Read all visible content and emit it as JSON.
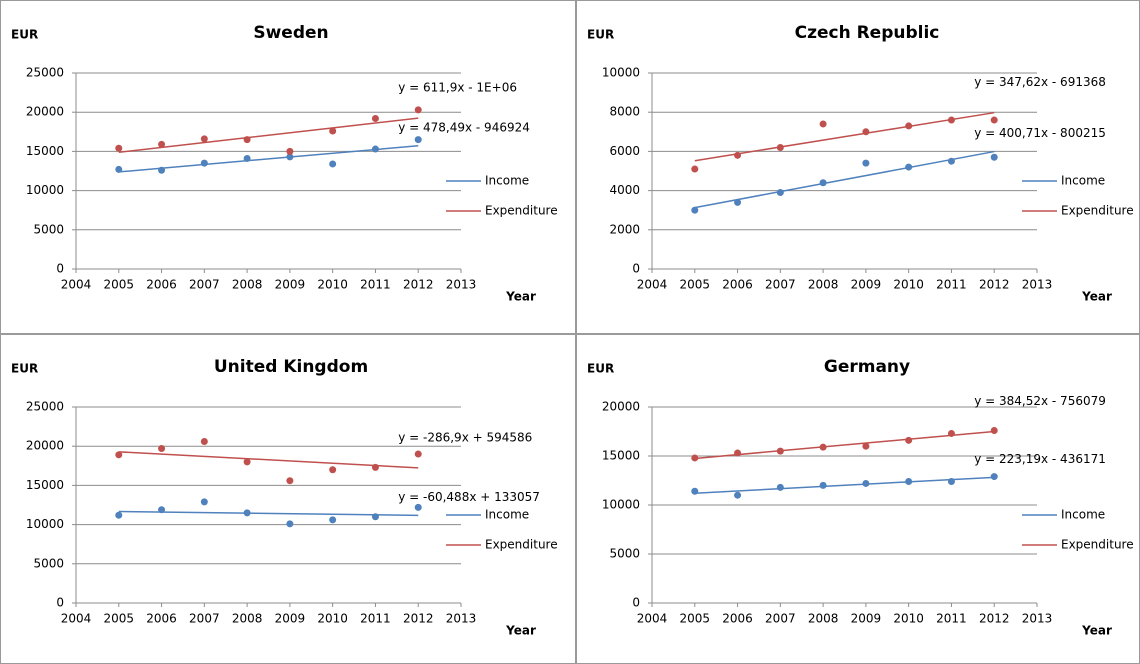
{
  "chart_data": [
    {
      "type": "scatter",
      "title": "Sweden",
      "y_label": "EUR",
      "x_label": "Year",
      "xlim": [
        2004,
        2013
      ],
      "xticks": [
        2004,
        2005,
        2006,
        2007,
        2008,
        2009,
        2010,
        2011,
        2012,
        2013
      ],
      "ylim": [
        0,
        25000
      ],
      "yticks": [
        0,
        5000,
        10000,
        15000,
        20000,
        25000
      ],
      "grid": true,
      "x": [
        2005,
        2006,
        2007,
        2008,
        2009,
        2010,
        2011,
        2012
      ],
      "series": [
        {
          "name": "Income",
          "color": "#4f81bd",
          "values": [
            12700,
            12600,
            13500,
            14100,
            14300,
            13400,
            15300,
            16500
          ],
          "trendline": "y = 478,49x - 946924"
        },
        {
          "name": "Expenditure",
          "color": "#c0504d",
          "values": [
            15400,
            15900,
            16600,
            16500,
            15000,
            17600,
            19200,
            20300
          ],
          "trendline": "y = 611,9x - 1E+06"
        }
      ]
    },
    {
      "type": "scatter",
      "title": "Czech Republic",
      "y_label": "EUR",
      "x_label": "Year",
      "xlim": [
        2004,
        2013
      ],
      "xticks": [
        2004,
        2005,
        2006,
        2007,
        2008,
        2009,
        2010,
        2011,
        2012,
        2013
      ],
      "ylim": [
        0,
        10000
      ],
      "yticks": [
        0,
        2000,
        4000,
        6000,
        8000,
        10000
      ],
      "grid": true,
      "x": [
        2005,
        2006,
        2007,
        2008,
        2009,
        2010,
        2011,
        2012
      ],
      "series": [
        {
          "name": "Income",
          "color": "#4f81bd",
          "values": [
            3000,
            3400,
            3900,
            4400,
            5400,
            5200,
            5500,
            5700
          ],
          "trendline": "y = 400,71x - 800215"
        },
        {
          "name": "Expenditure",
          "color": "#c0504d",
          "values": [
            5100,
            5800,
            6200,
            7400,
            7000,
            7300,
            7600,
            7600
          ],
          "trendline": "y = 347,62x - 691368"
        }
      ]
    },
    {
      "type": "scatter",
      "title": "United Kingdom",
      "y_label": "EUR",
      "x_label": "Year",
      "xlim": [
        2004,
        2013
      ],
      "xticks": [
        2004,
        2005,
        2006,
        2007,
        2008,
        2009,
        2010,
        2011,
        2012,
        2013
      ],
      "ylim": [
        0,
        25000
      ],
      "yticks": [
        0,
        5000,
        10000,
        15000,
        20000,
        25000
      ],
      "grid": true,
      "x": [
        2005,
        2006,
        2007,
        2008,
        2009,
        2010,
        2011,
        2012
      ],
      "series": [
        {
          "name": "Income",
          "color": "#4f81bd",
          "values": [
            11200,
            11900,
            12900,
            11500,
            10100,
            10600,
            11000,
            12200
          ],
          "trendline": "y = -60,488x + 133057"
        },
        {
          "name": "Expenditure",
          "color": "#c0504d",
          "values": [
            18900,
            19700,
            20600,
            18000,
            15600,
            17000,
            17300,
            19000
          ],
          "trendline": "y = -286,9x + 594586"
        }
      ]
    },
    {
      "type": "scatter",
      "title": "Germany",
      "y_label": "EUR",
      "x_label": "Year",
      "xlim": [
        2004,
        2013
      ],
      "xticks": [
        2004,
        2005,
        2006,
        2007,
        2008,
        2009,
        2010,
        2011,
        2012,
        2013
      ],
      "ylim": [
        0,
        20000
      ],
      "yticks": [
        0,
        5000,
        10000,
        15000,
        20000
      ],
      "grid": true,
      "x": [
        2005,
        2006,
        2007,
        2008,
        2009,
        2010,
        2011,
        2012
      ],
      "series": [
        {
          "name": "Income",
          "color": "#4f81bd",
          "values": [
            11400,
            11000,
            11800,
            12000,
            12200,
            12400,
            12400,
            12900
          ],
          "trendline": "y = 223,19x - 436171"
        },
        {
          "name": "Expenditure",
          "color": "#c0504d",
          "values": [
            14800,
            15300,
            15500,
            15900,
            16000,
            16600,
            17300,
            17600
          ],
          "trendline": "y = 384,52x - 756079"
        }
      ]
    }
  ]
}
